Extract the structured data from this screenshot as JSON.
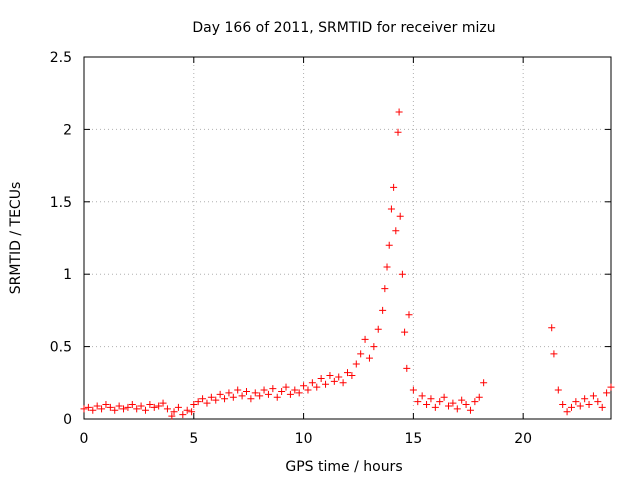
{
  "chart_data": {
    "type": "scatter",
    "title": "Day 166 of 2011, SRMTID for receiver mizu",
    "xlabel": "GPS time / hours",
    "ylabel": "SRMTID / TECUs",
    "xlim": [
      0,
      24
    ],
    "ylim": [
      0,
      2.5
    ],
    "xticks": [
      0,
      5,
      10,
      15,
      20
    ],
    "xtick_labels": [
      "0",
      "5",
      "10",
      "15",
      "20"
    ],
    "yticks": [
      0,
      0.5,
      1,
      1.5,
      2,
      2.5
    ],
    "ytick_labels": [
      "0",
      "0.5",
      "1",
      "1.5",
      "2",
      "2.5"
    ],
    "grid": true,
    "marker": "plus",
    "series_color": "#ff0000",
    "series": [
      {
        "name": "SRMTID",
        "points": [
          [
            0.0,
            0.07
          ],
          [
            0.2,
            0.08
          ],
          [
            0.4,
            0.06
          ],
          [
            0.6,
            0.09
          ],
          [
            0.8,
            0.07
          ],
          [
            1.0,
            0.1
          ],
          [
            1.2,
            0.08
          ],
          [
            1.4,
            0.06
          ],
          [
            1.6,
            0.09
          ],
          [
            1.8,
            0.07
          ],
          [
            2.0,
            0.08
          ],
          [
            2.2,
            0.1
          ],
          [
            2.4,
            0.07
          ],
          [
            2.6,
            0.09
          ],
          [
            2.8,
            0.06
          ],
          [
            3.0,
            0.1
          ],
          [
            3.2,
            0.08
          ],
          [
            3.4,
            0.09
          ],
          [
            3.6,
            0.11
          ],
          [
            3.8,
            0.07
          ],
          [
            4.0,
            0.02
          ],
          [
            4.1,
            0.05
          ],
          [
            4.3,
            0.08
          ],
          [
            4.5,
            0.03
          ],
          [
            4.7,
            0.06
          ],
          [
            4.9,
            0.05
          ],
          [
            5.0,
            0.1
          ],
          [
            5.2,
            0.12
          ],
          [
            5.4,
            0.14
          ],
          [
            5.6,
            0.11
          ],
          [
            5.8,
            0.15
          ],
          [
            6.0,
            0.13
          ],
          [
            6.2,
            0.17
          ],
          [
            6.4,
            0.14
          ],
          [
            6.6,
            0.18
          ],
          [
            6.8,
            0.15
          ],
          [
            7.0,
            0.2
          ],
          [
            7.2,
            0.16
          ],
          [
            7.4,
            0.19
          ],
          [
            7.6,
            0.14
          ],
          [
            7.8,
            0.18
          ],
          [
            8.0,
            0.16
          ],
          [
            8.2,
            0.2
          ],
          [
            8.4,
            0.17
          ],
          [
            8.6,
            0.21
          ],
          [
            8.8,
            0.15
          ],
          [
            9.0,
            0.19
          ],
          [
            9.2,
            0.22
          ],
          [
            9.4,
            0.17
          ],
          [
            9.6,
            0.2
          ],
          [
            9.8,
            0.18
          ],
          [
            10.0,
            0.23
          ],
          [
            10.2,
            0.2
          ],
          [
            10.4,
            0.25
          ],
          [
            10.6,
            0.22
          ],
          [
            10.8,
            0.28
          ],
          [
            11.0,
            0.24
          ],
          [
            11.2,
            0.3
          ],
          [
            11.4,
            0.26
          ],
          [
            11.6,
            0.29
          ],
          [
            11.8,
            0.25
          ],
          [
            12.0,
            0.32
          ],
          [
            12.2,
            0.3
          ],
          [
            12.4,
            0.38
          ],
          [
            12.6,
            0.45
          ],
          [
            12.8,
            0.55
          ],
          [
            13.0,
            0.42
          ],
          [
            13.2,
            0.5
          ],
          [
            13.4,
            0.62
          ],
          [
            13.6,
            0.75
          ],
          [
            13.7,
            0.9
          ],
          [
            13.8,
            1.05
          ],
          [
            13.9,
            1.2
          ],
          [
            14.0,
            1.45
          ],
          [
            14.1,
            1.6
          ],
          [
            14.2,
            1.3
          ],
          [
            14.3,
            1.98
          ],
          [
            14.35,
            2.12
          ],
          [
            14.4,
            1.4
          ],
          [
            14.5,
            1.0
          ],
          [
            14.6,
            0.6
          ],
          [
            14.7,
            0.35
          ],
          [
            14.8,
            0.72
          ],
          [
            15.0,
            0.2
          ],
          [
            15.2,
            0.12
          ],
          [
            15.4,
            0.16
          ],
          [
            15.6,
            0.1
          ],
          [
            15.8,
            0.14
          ],
          [
            16.0,
            0.08
          ],
          [
            16.2,
            0.12
          ],
          [
            16.4,
            0.15
          ],
          [
            16.6,
            0.09
          ],
          [
            16.8,
            0.11
          ],
          [
            17.0,
            0.07
          ],
          [
            17.2,
            0.13
          ],
          [
            17.4,
            0.1
          ],
          [
            17.6,
            0.06
          ],
          [
            17.8,
            0.12
          ],
          [
            18.0,
            0.15
          ],
          [
            18.2,
            0.25
          ],
          [
            21.3,
            0.63
          ],
          [
            21.4,
            0.45
          ],
          [
            21.6,
            0.2
          ],
          [
            21.8,
            0.1
          ],
          [
            22.0,
            0.05
          ],
          [
            22.2,
            0.08
          ],
          [
            22.4,
            0.12
          ],
          [
            22.6,
            0.09
          ],
          [
            22.8,
            0.14
          ],
          [
            23.0,
            0.1
          ],
          [
            23.2,
            0.16
          ],
          [
            23.4,
            0.12
          ],
          [
            23.6,
            0.08
          ],
          [
            23.8,
            0.18
          ],
          [
            24.0,
            0.22
          ]
        ]
      }
    ]
  }
}
